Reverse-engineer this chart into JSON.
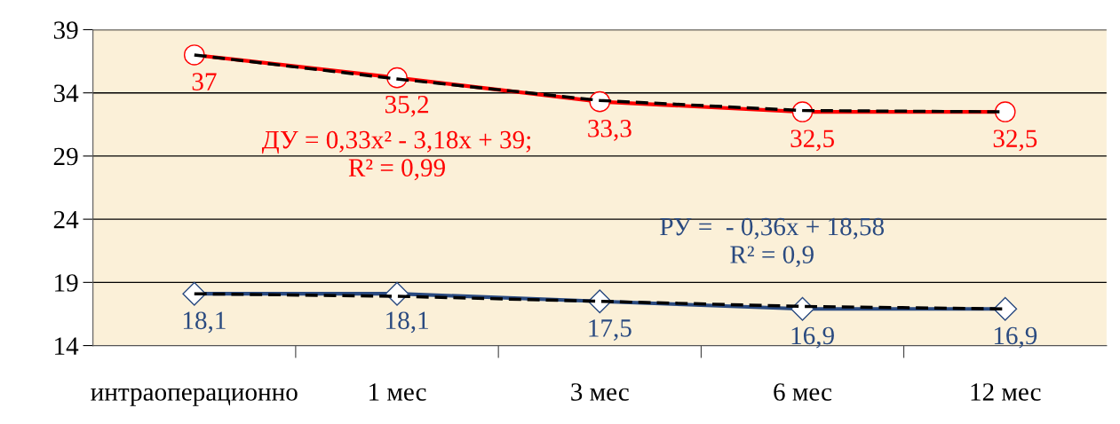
{
  "chart_data": {
    "type": "line",
    "categories": [
      "интраоперационно",
      "1 мес",
      "3 мес",
      "6 мес",
      "12 мес"
    ],
    "series": [
      {
        "color": "#ff0000",
        "marker": "circle",
        "values": [
          37,
          35.2,
          33.3,
          32.5,
          32.5
        ],
        "data_labels": true,
        "value_labels": [
          "37",
          "35,2",
          "33,3",
          "32,5",
          "32,5"
        ]
      },
      {
        "color": "#2a4a80",
        "marker": "diamond",
        "values": [
          18.1,
          18.1,
          17.5,
          16.9,
          16.9
        ],
        "data_labels": true,
        "value_labels": [
          "18,1",
          "18,1",
          "17,5",
          "16,9",
          "16,9"
        ]
      },
      {
        "type": "line",
        "color": "#000000",
        "line_style": "dashed",
        "marker": "none",
        "values": [
          37.0,
          35.1,
          33.4,
          32.6,
          32.5
        ]
      },
      {
        "type": "line",
        "color": "#000000",
        "line_style": "dashed",
        "marker": "none",
        "values": [
          18.1,
          17.9,
          17.5,
          17.1,
          16.9
        ]
      }
    ],
    "ylim": [
      14,
      39
    ],
    "yticks": [
      14,
      19,
      24,
      29,
      34,
      39
    ],
    "grid": "y",
    "legend": false,
    "annotations": [
      "ДУ = 0,33x² - 3,18x + 39;\nR² = 0,99",
      "РУ =  - 0,36x + 18,58\nR² = 0,9"
    ]
  }
}
